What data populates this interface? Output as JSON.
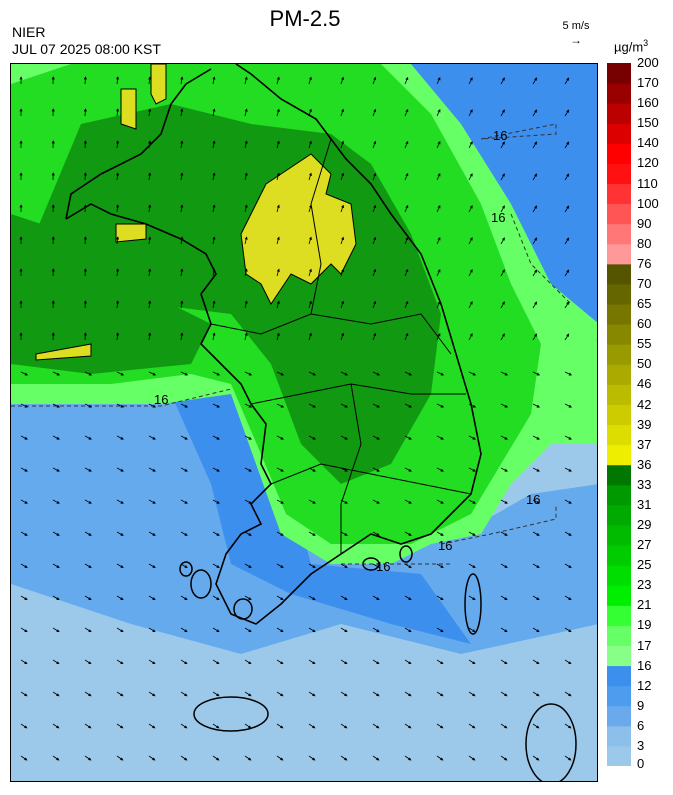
{
  "header": {
    "title": "PM-2.5",
    "agency": "NIER",
    "datetime": "JUL 07 2025 08:00 KST",
    "wind_reference": "5 m/s",
    "unit_prefix": "µg/m",
    "unit_exponent": "3"
  },
  "map": {
    "contour_label": "16",
    "colors": {
      "sea_low": "#9cc9ea",
      "sea_mid": "#66aaee",
      "sea_high": "#3d8fee",
      "green_light": "#66ff66",
      "green": "#22dd22",
      "green_dark": "#119911",
      "yellow": "#dddd22",
      "coastline": "#000000"
    }
  },
  "legend": {
    "levels": [
      "0",
      "3",
      "6",
      "9",
      "12",
      "16",
      "17",
      "19",
      "21",
      "23",
      "25",
      "27",
      "29",
      "31",
      "33",
      "36",
      "37",
      "39",
      "42",
      "46",
      "50",
      "55",
      "60",
      "65",
      "70",
      "76",
      "80",
      "90",
      "100",
      "110",
      "120",
      "140",
      "150",
      "160",
      "170",
      "200"
    ],
    "colors": [
      "#9cc9ea",
      "#8cc0ea",
      "#6aaaec",
      "#4d9cee",
      "#3d8fee",
      "#88ff88",
      "#66ff66",
      "#33ff33",
      "#00ee00",
      "#00dd00",
      "#00cc00",
      "#00bb00",
      "#00aa00",
      "#009900",
      "#007700",
      "#eeee00",
      "#dddd00",
      "#cccc00",
      "#bbbb00",
      "#aaaa00",
      "#999900",
      "#888800",
      "#777700",
      "#666600",
      "#555500",
      "#ff9999",
      "#ff7777",
      "#ff5555",
      "#ff3333",
      "#ff1111",
      "#ff0000",
      "#dd0000",
      "#bb0000",
      "#990000",
      "#770000"
    ]
  }
}
